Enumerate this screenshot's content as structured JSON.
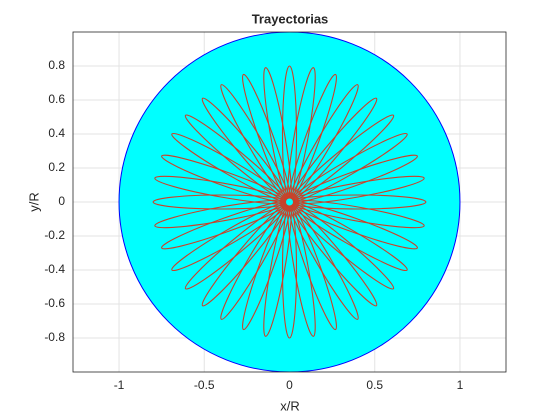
{
  "chart_data": {
    "type": "trajectory",
    "title": "Trayectorias",
    "x_label": "x/R",
    "y_label": "y/R",
    "xlim": [
      -1.27,
      1.27
    ],
    "ylim": [
      -1,
      1
    ],
    "xticks": [
      -1,
      -0.5,
      0,
      0.5,
      1
    ],
    "yticks": [
      -0.8,
      -0.6,
      -0.4,
      -0.2,
      0,
      0.2,
      0.4,
      0.6,
      0.8
    ],
    "grid": true,
    "region": {
      "radius": 1,
      "fill": "#00ffff",
      "edge": "#0000ff"
    },
    "series": [
      {
        "color": "#c8422a",
        "x": [
          0.8,
          0.79,
          0.75,
          0.69,
          0.61,
          0.51,
          0.4,
          0.27,
          0.14,
          0,
          -0.14,
          -0.27,
          -0.4,
          -0.51,
          -0.61,
          -0.69,
          -0.75,
          -0.79,
          -0.8,
          -0.79,
          -0.75,
          -0.69,
          -0.61,
          -0.51,
          -0.4,
          -0.27,
          -0.14,
          0,
          0.14,
          0.27,
          0.4,
          0.51,
          0.61,
          0.69,
          0.75,
          0.79
        ],
        "y": [
          0,
          0.14,
          0.27,
          0.4,
          0.51,
          0.61,
          0.69,
          0.75,
          0.79,
          0.8,
          0.79,
          0.75,
          0.69,
          0.61,
          0.51,
          0.4,
          0.27,
          0.14,
          0,
          -0.14,
          -0.27,
          -0.4,
          -0.51,
          -0.61,
          -0.69,
          -0.75,
          -0.79,
          -0.8,
          -0.79,
          -0.75,
          -0.69,
          -0.61,
          -0.51,
          -0.4,
          -0.27,
          -0.14
        ]
      },
      {
        "color": "#00ffff",
        "x": [
          0
        ],
        "y": [
          0
        ]
      }
    ]
  }
}
